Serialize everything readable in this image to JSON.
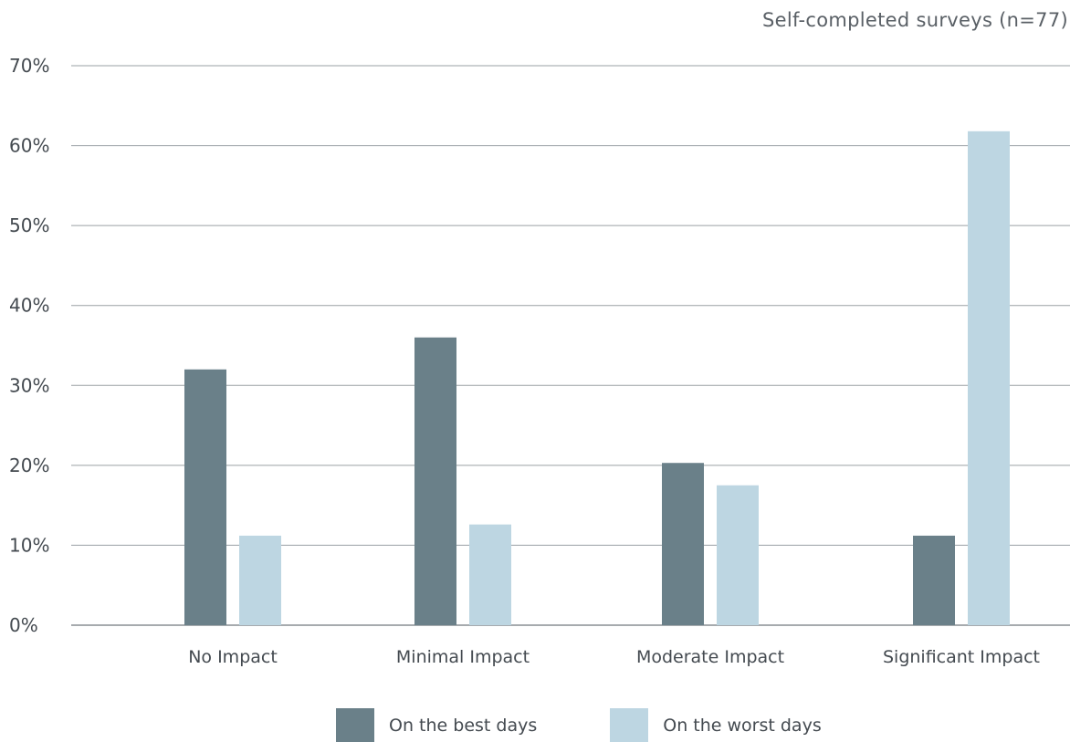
{
  "note": "Self-completed surveys (n=77)",
  "chart_data": {
    "type": "bar",
    "categories": [
      "No Impact",
      "Minimal Impact",
      "Moderate Impact",
      "Significant Impact"
    ],
    "series": [
      {
        "name": "On the best days",
        "values": [
          32,
          36,
          20.3,
          11.2
        ],
        "color": "#6a8089"
      },
      {
        "name": "On the worst days",
        "values": [
          11.2,
          12.6,
          17.5,
          61.8
        ],
        "color": "#bdd6e2"
      }
    ],
    "yticks": [
      "0%",
      "10%",
      "20%",
      "30%",
      "40%",
      "50%",
      "60%",
      "70%"
    ],
    "ylim": [
      0,
      70
    ],
    "grid": true,
    "legend": "bottom"
  }
}
